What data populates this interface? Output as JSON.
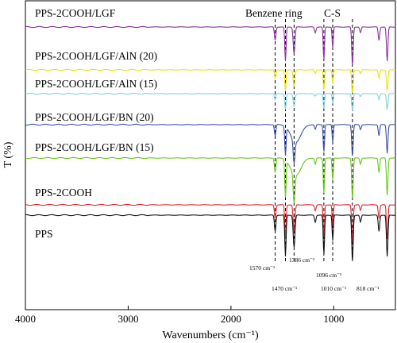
{
  "chart_data": {
    "type": "line",
    "xlabel": "Wavenumbers (cm⁻¹)",
    "ylabel": "T (%)",
    "xlim": [
      4000,
      400
    ],
    "x_reversed": true,
    "x_ticks": [
      "4000",
      "3000",
      "2000",
      "1000"
    ],
    "x_tick_values": [
      4000,
      3000,
      2000,
      1000
    ],
    "grid": false,
    "series": [
      {
        "name": "PPS-2COOH/LGF",
        "color": "#8b2f9c",
        "baseline": 0.0,
        "hump": 0.0
      },
      {
        "name": "PPS-2COOH/LGF/AlN (20)",
        "color": "#e9e11c",
        "baseline": 0.0,
        "hump": 0.0
      },
      {
        "name": "PPS-2COOH/LGF/AlN (15)",
        "color": "#7fd3e0",
        "baseline": 0.0,
        "hump": 0.0
      },
      {
        "name": "PPS-2COOH/LGF/BN (20)",
        "color": "#3d4fa8",
        "baseline": 0.0,
        "hump": 1.0
      },
      {
        "name": "PPS-2COOH/LGF/BN (15)",
        "color": "#6ac51c",
        "baseline": 0.0,
        "hump": 1.0
      },
      {
        "name": "PPS-2COOH",
        "color": "#e2262b",
        "baseline": 0.0,
        "hump": 0.0
      },
      {
        "name": "PPS",
        "color": "#111111",
        "baseline": 0.0,
        "hump": 0.0
      }
    ],
    "reference_lines": [
      1570,
      1470,
      1386,
      1096,
      1010,
      818
    ],
    "annotations": [
      {
        "text": "Benzene ring",
        "x": 1480
      },
      {
        "text": "C-S",
        "x": 1050
      }
    ],
    "peak_labels": [
      {
        "text": "1570 cm⁻¹",
        "x": 1570
      },
      {
        "text": "1470 cm⁻¹",
        "x": 1470
      },
      {
        "text": "1386 cm⁻¹",
        "x": 1386
      },
      {
        "text": "1096 cm⁻¹",
        "x": 1096
      },
      {
        "text": "1010 cm⁻¹",
        "x": 1010
      },
      {
        "text": "818 cm⁻¹",
        "x": 818
      }
    ],
    "peaks": [
      {
        "x": 1570,
        "depth": 0.35,
        "width": 10
      },
      {
        "x": 1470,
        "depth": 0.9,
        "width": 9
      },
      {
        "x": 1386,
        "depth": 0.7,
        "width": 12
      },
      {
        "x": 1180,
        "depth": 0.15,
        "width": 10
      },
      {
        "x": 1096,
        "depth": 0.85,
        "width": 9
      },
      {
        "x": 1010,
        "depth": 0.55,
        "width": 8
      },
      {
        "x": 818,
        "depth": 1.0,
        "width": 10
      },
      {
        "x": 740,
        "depth": 0.15,
        "width": 10
      },
      {
        "x": 560,
        "depth": 0.35,
        "width": 10
      },
      {
        "x": 480,
        "depth": 0.9,
        "width": 10
      }
    ]
  }
}
